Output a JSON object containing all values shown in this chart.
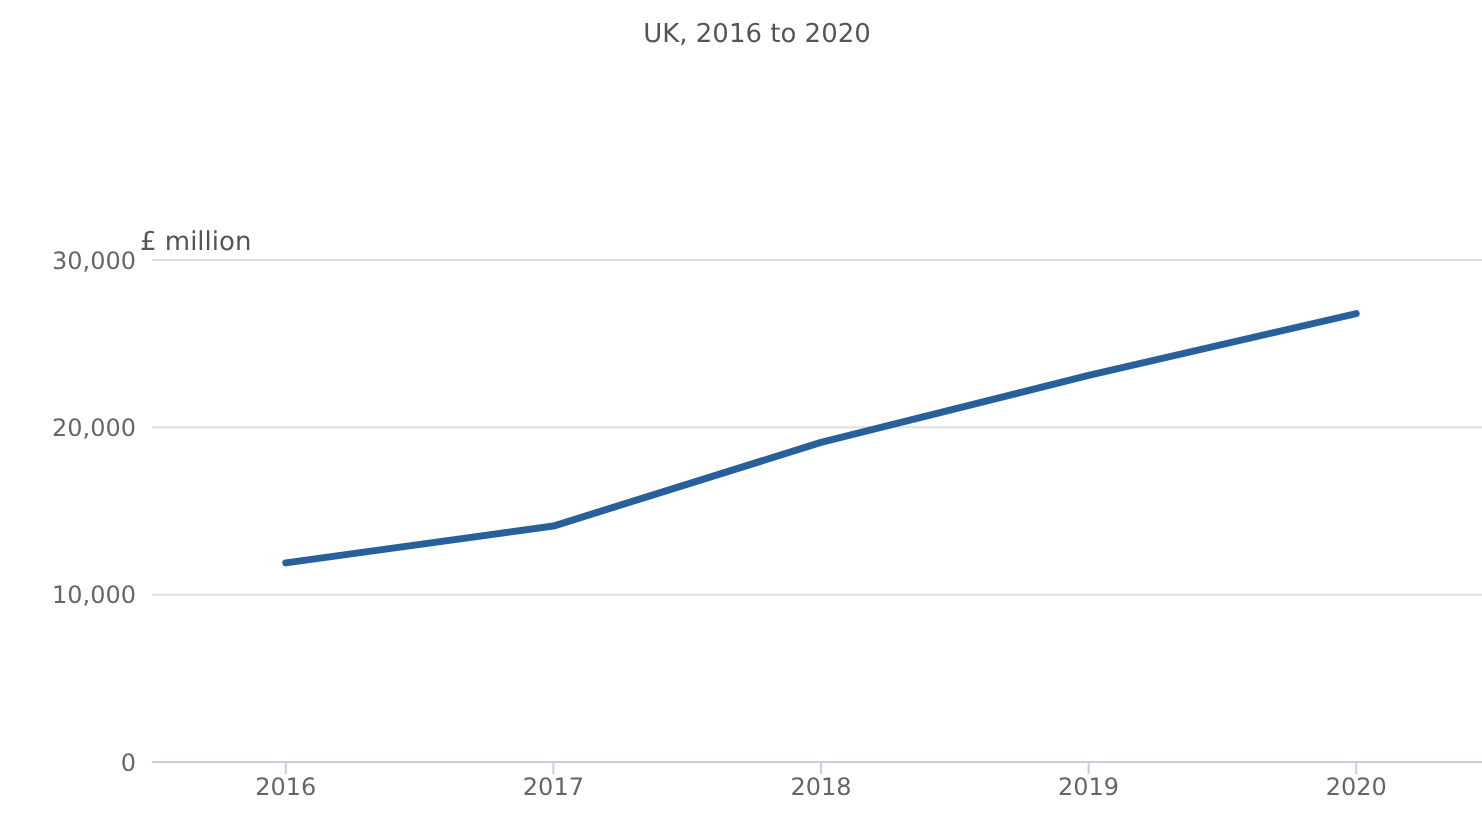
{
  "chart_data": {
    "type": "line",
    "title": "UK, 2016 to 2020",
    "ylabel": "£ million",
    "categories": [
      "2016",
      "2017",
      "2018",
      "2019",
      "2020"
    ],
    "series": [
      {
        "color": "#27609a",
        "values": [
          11900,
          14100,
          19100,
          23100,
          26800
        ]
      }
    ],
    "ylim": [
      0,
      30000
    ],
    "yticks": [
      0,
      {
        "value": 10000,
        "label": "10,000"
      },
      {
        "value": 20000,
        "label": "20,000"
      },
      {
        "value": 30000,
        "label": "30,000"
      }
    ],
    "grid": "y",
    "marker": "none",
    "line_style": "solid",
    "legend": false
  }
}
